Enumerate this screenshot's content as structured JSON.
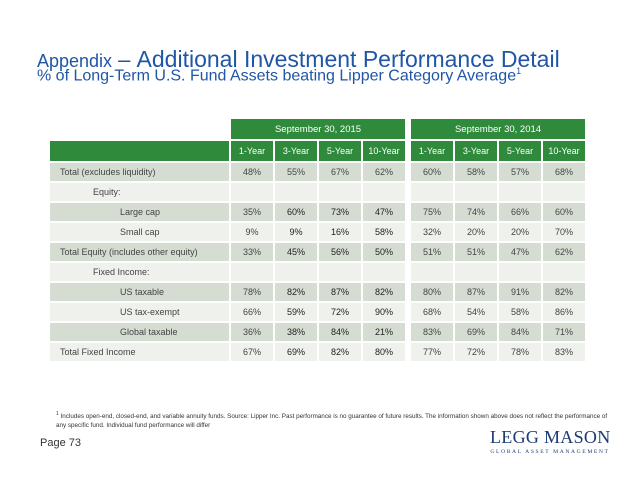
{
  "title": {
    "prefix": "Appendix",
    "dash": " – ",
    "main": "Additional Investment Performance Detail",
    "subtitle": "% of Long-Term U.S. Fund Assets beating Lipper Category Average",
    "subtitle_sup": "1"
  },
  "table": {
    "periods": [
      "September 30, 2015",
      "September 30, 2014"
    ],
    "columns": [
      "1-Year",
      "3-Year",
      "5-Year",
      "10-Year",
      "1-Year",
      "3-Year",
      "5-Year",
      "10-Year"
    ],
    "rows": [
      {
        "label": "Total (excludes liquidity)",
        "values": [
          "48%",
          "55%",
          "67%",
          "62%",
          "60%",
          "58%",
          "57%",
          "68%"
        ]
      },
      {
        "label": "Equity:",
        "values": [
          "",
          "",
          "",
          "",
          "",
          "",
          "",
          ""
        ]
      },
      {
        "label": "Large cap",
        "values": [
          "35%",
          "60%",
          "73%",
          "47%",
          "75%",
          "74%",
          "66%",
          "60%"
        ]
      },
      {
        "label": "Small cap",
        "values": [
          "9%",
          "9%",
          "16%",
          "58%",
          "32%",
          "20%",
          "20%",
          "70%"
        ]
      },
      {
        "label": "Total Equity (includes other equity)",
        "values": [
          "33%",
          "45%",
          "56%",
          "50%",
          "51%",
          "51%",
          "47%",
          "62%"
        ]
      },
      {
        "label": "Fixed Income:",
        "values": [
          "",
          "",
          "",
          "",
          "",
          "",
          "",
          ""
        ]
      },
      {
        "label": "US taxable",
        "values": [
          "78%",
          "82%",
          "87%",
          "82%",
          "80%",
          "87%",
          "91%",
          "82%"
        ]
      },
      {
        "label": "US tax-exempt",
        "values": [
          "66%",
          "59%",
          "72%",
          "90%",
          "68%",
          "54%",
          "58%",
          "86%"
        ]
      },
      {
        "label": "Global taxable",
        "values": [
          "36%",
          "38%",
          "84%",
          "21%",
          "83%",
          "69%",
          "84%",
          "71%"
        ]
      },
      {
        "label": "Total Fixed Income",
        "values": [
          "67%",
          "69%",
          "82%",
          "80%",
          "77%",
          "72%",
          "78%",
          "83%"
        ]
      }
    ]
  },
  "footnote": {
    "sup": "1",
    "text": " Includes open-end, closed-end, and variable annuity funds. Source: Lipper Inc. Past performance is no guarantee of future results. The information shown above does not reflect the performance of any specific fund. Individual fund performance will differ"
  },
  "page_label": "Page 73",
  "logo": {
    "main": "LEGG MASON",
    "sub": "GLOBAL ASSET MANAGEMENT"
  },
  "colors": {
    "title_blue": "#1f56a6",
    "header_green": "#2f8a3c",
    "row_shade": "#d5ddd2",
    "row_light": "#eef1ec",
    "logo_navy": "#1a3b73"
  }
}
